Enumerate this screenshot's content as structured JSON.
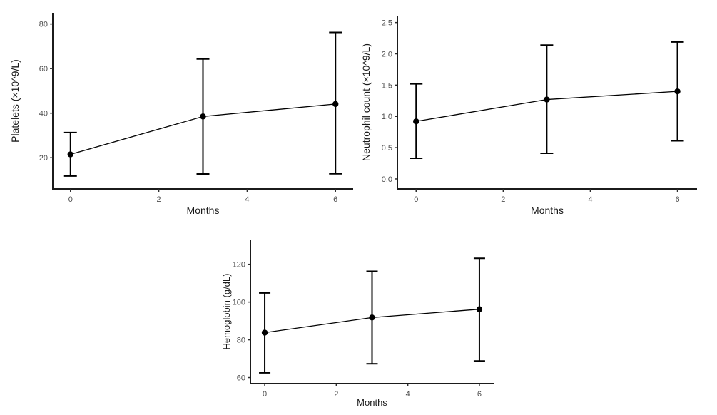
{
  "figure": {
    "background": "#ffffff",
    "colors": {
      "axis_line": "#1b1b1b",
      "tick_mark": "#2e2e2e",
      "tick_label": "#4d4d4d",
      "axis_title": "#1a1a1a",
      "series": "#000000"
    }
  },
  "chart_data": [
    {
      "id": "platelets",
      "type": "line",
      "title": "",
      "xlabel": "Months",
      "ylabel": "Platelets (×10^9/L)",
      "x": [
        0,
        3,
        6
      ],
      "values": [
        21.5,
        38.5,
        44.1
      ],
      "error_low": [
        11.8,
        12.7,
        12.8
      ],
      "error_high": [
        31.3,
        64.3,
        76.2
      ],
      "x_ticks": {
        "values": [
          0,
          2,
          4,
          6
        ],
        "labels": [
          "0",
          "2",
          "4",
          "6"
        ]
      },
      "y_ticks": {
        "values": [
          20,
          40,
          60,
          80
        ],
        "labels": [
          "20",
          "40",
          "60",
          "80"
        ]
      },
      "xlim": [
        -0.4,
        6.4
      ],
      "ylim": [
        6,
        85
      ],
      "grid": false,
      "legend": "none",
      "marker": "point-with-error-bars"
    },
    {
      "id": "neutrophil-count",
      "type": "line",
      "title": "",
      "xlabel": "Months",
      "ylabel": "Neutrophil count (×10^9/L)",
      "x": [
        0,
        3,
        6
      ],
      "values": [
        0.92,
        1.27,
        1.4
      ],
      "error_low": [
        0.33,
        0.41,
        0.61
      ],
      "error_high": [
        1.52,
        2.14,
        2.19
      ],
      "x_ticks": {
        "values": [
          0,
          2,
          4,
          6
        ],
        "labels": [
          "0",
          "2",
          "4",
          "6"
        ]
      },
      "y_ticks": {
        "values": [
          0.0,
          0.5,
          1.0,
          1.5,
          2.0,
          2.5
        ],
        "labels": [
          "0.0",
          "0.5",
          "1.0",
          "1.5",
          "2.0",
          "2.5"
        ]
      },
      "xlim": [
        -0.43,
        6.45
      ],
      "ylim": [
        -0.16,
        2.61
      ],
      "grid": false,
      "legend": "none",
      "marker": "point-with-error-bars"
    },
    {
      "id": "hemoglobin",
      "type": "line",
      "title": "",
      "xlabel": "Months",
      "ylabel": "Hemoglobin (g/dL)",
      "x": [
        0,
        3,
        6
      ],
      "values": [
        83.8,
        91.8,
        96.2
      ],
      "error_low": [
        62.5,
        67.3,
        68.8
      ],
      "error_high": [
        104.8,
        116.3,
        123.2
      ],
      "x_ticks": {
        "values": [
          0,
          2,
          4,
          6
        ],
        "labels": [
          "0",
          "2",
          "4",
          "6"
        ]
      },
      "y_ticks": {
        "values": [
          60,
          80,
          100,
          120
        ],
        "labels": [
          "60",
          "80",
          "100",
          "120"
        ]
      },
      "xlim": [
        -0.4,
        6.4
      ],
      "ylim": [
        56.8,
        133.1
      ],
      "grid": false,
      "legend": "none",
      "marker": "point-with-error-bars"
    }
  ]
}
